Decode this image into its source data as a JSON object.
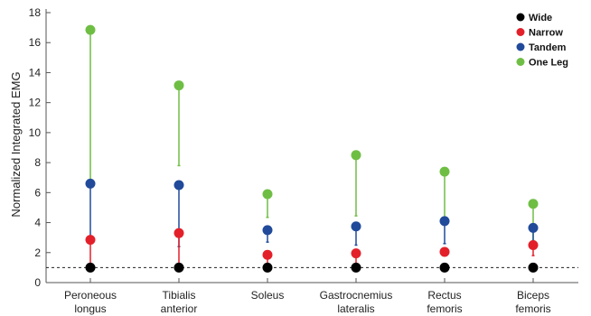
{
  "chart_data": {
    "type": "scatter",
    "title": "",
    "xlabel": "",
    "ylabel": "Normalized Integrated EMG",
    "ylim": [
      0,
      18
    ],
    "yticks": [
      0,
      2,
      4,
      6,
      8,
      10,
      12,
      14,
      16,
      18
    ],
    "grid": false,
    "legend_position": "top-right",
    "reference_line": {
      "y": 1,
      "style": "dashed"
    },
    "categories": [
      [
        "Peroneous",
        "longus"
      ],
      [
        "Tibialis",
        "anterior"
      ],
      [
        "Soleus"
      ],
      [
        "Gastrocnemius",
        "lateralis"
      ],
      [
        "Rectus",
        "femoris"
      ],
      [
        "Biceps",
        "femoris"
      ]
    ],
    "series": [
      {
        "name": "Wide",
        "color": "#000000",
        "values": [
          1.0,
          1.0,
          1.0,
          1.0,
          1.0,
          1.0
        ],
        "error_low": [
          1.0,
          1.0,
          1.0,
          1.0,
          1.0,
          1.0
        ]
      },
      {
        "name": "Narrow",
        "color": "#e3202a",
        "values": [
          2.85,
          3.3,
          1.85,
          1.95,
          2.05,
          2.5
        ],
        "error_low": [
          1.0,
          1.0,
          1.0,
          1.0,
          1.8,
          1.8
        ]
      },
      {
        "name": "Tandem",
        "color": "#214a9a",
        "values": [
          6.6,
          6.5,
          3.5,
          3.75,
          4.1,
          3.65
        ],
        "error_low": [
          2.7,
          2.4,
          2.7,
          2.5,
          2.6,
          2.7
        ]
      },
      {
        "name": "One Leg",
        "color": "#6fbe44",
        "values": [
          16.85,
          13.15,
          5.9,
          8.5,
          7.4,
          5.25
        ],
        "error_low": [
          6.6,
          7.8,
          4.35,
          4.45,
          4.1,
          2.8
        ]
      }
    ]
  }
}
